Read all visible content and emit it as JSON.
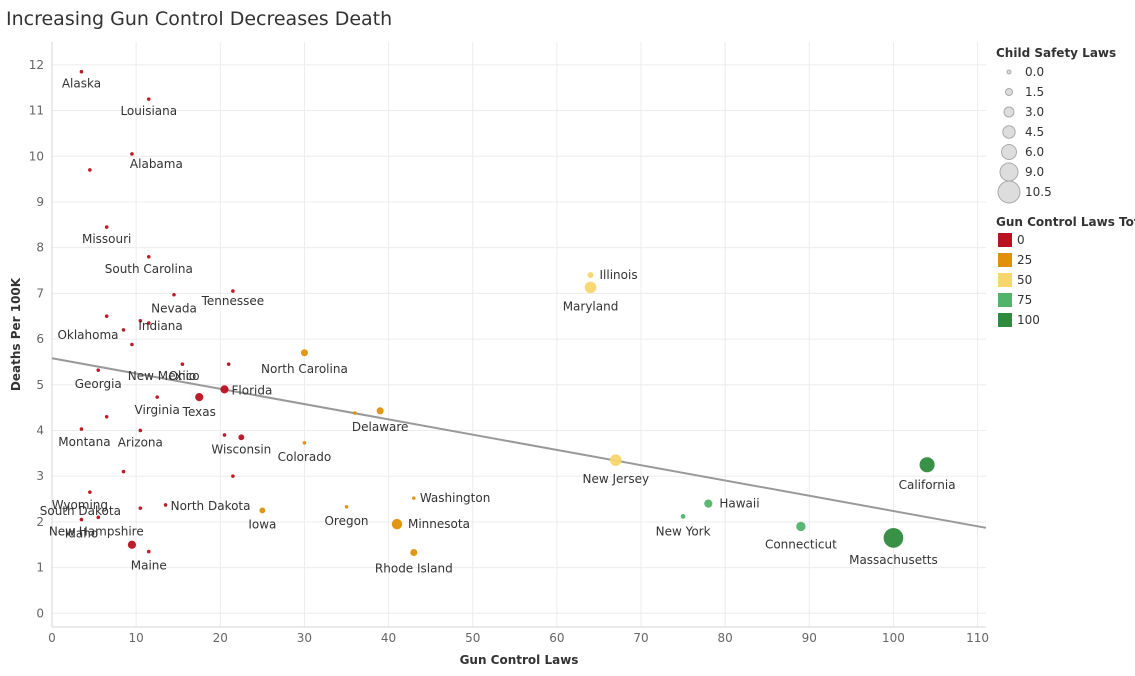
{
  "title": "Increasing Gun Control Decreases Death",
  "chart_data": {
    "type": "scatter",
    "title": "Increasing Gun Control Decreases Death",
    "xlabel": "Gun Control Laws",
    "ylabel": "Deaths Per 100K",
    "xlim": [
      0,
      111
    ],
    "ylim": [
      -0.3,
      12.5
    ],
    "xticks": [
      "0",
      "10",
      "20",
      "30",
      "40",
      "50",
      "60",
      "70",
      "80",
      "90",
      "100",
      "110"
    ],
    "yticks": [
      "0",
      "1",
      "2",
      "3",
      "4",
      "5",
      "6",
      "7",
      "8",
      "9",
      "10",
      "11",
      "12"
    ],
    "grid": true,
    "trend_line": {
      "x": [
        0,
        111
      ],
      "y": [
        5.58,
        1.87
      ],
      "color": "#999999"
    },
    "points": [
      {
        "label": "Alaska",
        "x": 3.5,
        "y": 11.85,
        "size": 0,
        "cat": 0
      },
      {
        "label": "Louisiana",
        "x": 11.5,
        "y": 11.25,
        "size": 0,
        "cat": 0
      },
      {
        "label": "Alabama",
        "x": 9.5,
        "y": 10.05,
        "size": 0,
        "cat": 0
      },
      {
        "label": "",
        "x": 4.5,
        "y": 9.7,
        "size": 0,
        "cat": 0
      },
      {
        "label": "Missouri",
        "x": 6.5,
        "y": 8.45,
        "size": 0,
        "cat": 0
      },
      {
        "label": "South Carolina",
        "x": 11.5,
        "y": 7.8,
        "size": 0,
        "cat": 0
      },
      {
        "label": "Tennessee",
        "x": 21.5,
        "y": 7.05,
        "size": 0,
        "cat": 0
      },
      {
        "label": "Nevada",
        "x": 14.5,
        "y": 6.97,
        "size": 0,
        "cat": 0
      },
      {
        "label": "",
        "x": 6.5,
        "y": 6.5,
        "size": 0,
        "cat": 0
      },
      {
        "label": "Indiana",
        "x": 10.5,
        "y": 6.4,
        "size": 0,
        "cat": 0
      },
      {
        "label": "",
        "x": 11.5,
        "y": 6.35,
        "size": 0,
        "cat": 0
      },
      {
        "label": "Oklahoma",
        "x": 8.5,
        "y": 6.2,
        "size": 0,
        "cat": 0
      },
      {
        "label": "",
        "x": 9.5,
        "y": 5.88,
        "size": 0,
        "cat": 0
      },
      {
        "label": "New Mexico",
        "x": 21,
        "y": 5.45,
        "size": 0,
        "cat": 0
      },
      {
        "label": "Ohio",
        "x": 15.5,
        "y": 5.45,
        "size": 0,
        "cat": 0
      },
      {
        "label": "Georgia",
        "x": 5.5,
        "y": 5.32,
        "size": 0,
        "cat": 0
      },
      {
        "label": "Florida",
        "x": 20.5,
        "y": 4.9,
        "size": 2,
        "cat": 0
      },
      {
        "label": "Texas",
        "x": 17.5,
        "y": 4.73,
        "size": 2,
        "cat": 0
      },
      {
        "label": "Virginia",
        "x": 12.5,
        "y": 4.73,
        "size": 0,
        "cat": 0
      },
      {
        "label": "",
        "x": 6.5,
        "y": 4.3,
        "size": 0,
        "cat": 0
      },
      {
        "label": "Montana",
        "x": 3.5,
        "y": 4.03,
        "size": 0,
        "cat": 0
      },
      {
        "label": "Arizona",
        "x": 10.5,
        "y": 4.0,
        "size": 0,
        "cat": 0
      },
      {
        "label": "",
        "x": 20.5,
        "y": 3.9,
        "size": 0,
        "cat": 0
      },
      {
        "label": "Wisconsin",
        "x": 22.5,
        "y": 3.85,
        "size": 1,
        "cat": 0
      },
      {
        "label": "",
        "x": 8.5,
        "y": 3.1,
        "size": 0,
        "cat": 0
      },
      {
        "label": "",
        "x": 21.5,
        "y": 3.0,
        "size": 0,
        "cat": 0
      },
      {
        "label": "Wyoming",
        "x": 4.5,
        "y": 2.65,
        "size": 0,
        "cat": 0
      },
      {
        "label": "North Dakota",
        "x": 13.5,
        "y": 2.37,
        "size": 0,
        "cat": 0
      },
      {
        "label": "South Dakota",
        "x": 10.5,
        "y": 2.3,
        "size": 0,
        "cat": 0
      },
      {
        "label": "New Hampshire",
        "x": 5.5,
        "y": 2.1,
        "size": 0,
        "cat": 0
      },
      {
        "label": "Idaho",
        "x": 3.5,
        "y": 2.05,
        "size": 0,
        "cat": 0
      },
      {
        "label": "",
        "x": 9.5,
        "y": 1.5,
        "size": 2,
        "cat": 0
      },
      {
        "label": "Maine",
        "x": 11.5,
        "y": 1.35,
        "size": 0,
        "cat": 0
      },
      {
        "label": "North Carolina",
        "x": 30,
        "y": 5.7,
        "size": 1.5,
        "cat": 25
      },
      {
        "label": "Delaware",
        "x": 39,
        "y": 4.43,
        "size": 1.5,
        "cat": 25
      },
      {
        "label": "",
        "x": 36,
        "y": 4.38,
        "size": 0,
        "cat": 25
      },
      {
        "label": "Colorado",
        "x": 30,
        "y": 3.73,
        "size": 0,
        "cat": 25
      },
      {
        "label": "Washington",
        "x": 43,
        "y": 2.52,
        "size": 0,
        "cat": 25
      },
      {
        "label": "Oregon",
        "x": 35,
        "y": 2.33,
        "size": 0,
        "cat": 25
      },
      {
        "label": "Iowa",
        "x": 25,
        "y": 2.25,
        "size": 1,
        "cat": 25
      },
      {
        "label": "Minnesota",
        "x": 41,
        "y": 1.95,
        "size": 3,
        "cat": 25
      },
      {
        "label": "Rhode Island",
        "x": 43,
        "y": 1.33,
        "size": 1.5,
        "cat": 25
      },
      {
        "label": "Illinois",
        "x": 64,
        "y": 7.4,
        "size": 1,
        "cat": 50
      },
      {
        "label": "Maryland",
        "x": 64,
        "y": 7.13,
        "size": 3.5,
        "cat": 50
      },
      {
        "label": "New Jersey",
        "x": 67,
        "y": 3.35,
        "size": 3.5,
        "cat": 50
      },
      {
        "label": "Hawaii",
        "x": 78,
        "y": 2.4,
        "size": 2,
        "cat": 75
      },
      {
        "label": "New York",
        "x": 75,
        "y": 2.12,
        "size": 0.5,
        "cat": 75
      },
      {
        "label": "Connecticut",
        "x": 89,
        "y": 1.9,
        "size": 2.5,
        "cat": 75
      },
      {
        "label": "California",
        "x": 104,
        "y": 3.25,
        "size": 5,
        "cat": 100
      },
      {
        "label": "Massachusetts",
        "x": 100,
        "y": 1.65,
        "size": 7,
        "cat": 100
      }
    ],
    "size_legend": {
      "title": "Child Safety Laws",
      "values": [
        "0.0",
        "1.5",
        "3.0",
        "4.5",
        "6.0",
        "9.0",
        "10.5"
      ]
    },
    "color_legend": {
      "title": "Gun Control Laws Total",
      "items": [
        {
          "label": "0",
          "color": "#b8111f"
        },
        {
          "label": "25",
          "color": "#e0900a"
        },
        {
          "label": "50",
          "color": "#f8d66e"
        },
        {
          "label": "75",
          "color": "#52b46a"
        },
        {
          "label": "100",
          "color": "#2e8b3e"
        }
      ]
    }
  }
}
